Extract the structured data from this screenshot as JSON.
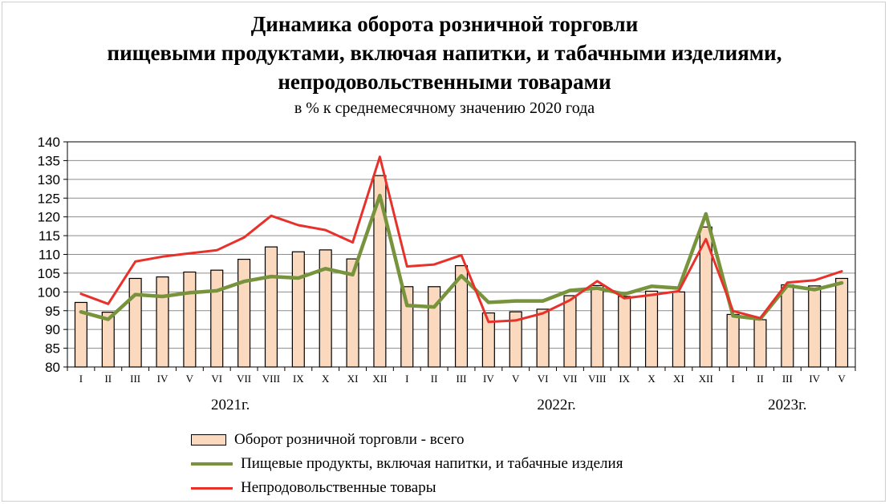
{
  "chart_data": {
    "type": "bar+line",
    "title_lines": [
      "Динамика оборота розничной торговли",
      "пищевыми продуктами, включая напитки, и табачными изделиями,",
      "непродовольственными товарами"
    ],
    "subtitle": "в % к среднемесячному значению 2020 года",
    "categories": [
      "I",
      "II",
      "III",
      "IV",
      "V",
      "VI",
      "VII",
      "VIII",
      "IX",
      "X",
      "XI",
      "XII",
      "I",
      "II",
      "III",
      "IV",
      "V",
      "VI",
      "VII",
      "VIII",
      "IX",
      "X",
      "XI",
      "XII",
      "I",
      "II",
      "III",
      "IV",
      "V"
    ],
    "year_labels": [
      {
        "label": "2021г.",
        "span": [
          0,
          11
        ]
      },
      {
        "label": "2022г.",
        "span": [
          12,
          23
        ]
      },
      {
        "label": "2023г.",
        "span": [
          24,
          28
        ]
      }
    ],
    "ylim": [
      80,
      140
    ],
    "yticks": [
      80,
      85,
      90,
      95,
      100,
      105,
      110,
      115,
      120,
      125,
      130,
      135,
      140
    ],
    "grid": true,
    "series": [
      {
        "name": "Оборот розничной торговли - всего",
        "kind": "bar",
        "color": "#FBD9BE",
        "values": [
          97.2,
          94.6,
          103.6,
          104.0,
          105.3,
          105.8,
          108.7,
          112.0,
          110.7,
          111.2,
          108.8,
          131.0,
          101.4,
          101.4,
          107.0,
          94.4,
          94.7,
          95.4,
          99.0,
          101.7,
          98.8,
          100.2,
          100.0,
          117.3,
          94.0,
          92.6,
          101.9,
          101.6,
          103.6
        ]
      },
      {
        "name": "Пищевые продукты, включая напитки, и табачные изделия",
        "kind": "line",
        "color": "#77933C",
        "values": [
          94.7,
          92.7,
          99.3,
          98.8,
          99.8,
          100.3,
          102.8,
          104.1,
          103.7,
          106.2,
          104.6,
          125.7,
          96.4,
          96.0,
          104.3,
          97.2,
          97.6,
          97.6,
          100.4,
          101.0,
          99.4,
          101.5,
          101.0,
          120.8,
          93.6,
          92.8,
          101.7,
          100.6,
          102.4
        ]
      },
      {
        "name": "Непродовольственные товары",
        "kind": "line",
        "color": "#E8312A",
        "values": [
          99.5,
          96.8,
          108.1,
          109.4,
          110.3,
          111.1,
          114.5,
          120.3,
          117.8,
          116.5,
          113.2,
          136.0,
          106.8,
          107.3,
          109.8,
          92.0,
          92.4,
          94.3,
          97.8,
          102.9,
          98.3,
          99.2,
          100.2,
          114.1,
          94.9,
          93.0,
          102.5,
          103.1,
          105.5
        ]
      }
    ],
    "legend_placement": "bottom"
  }
}
